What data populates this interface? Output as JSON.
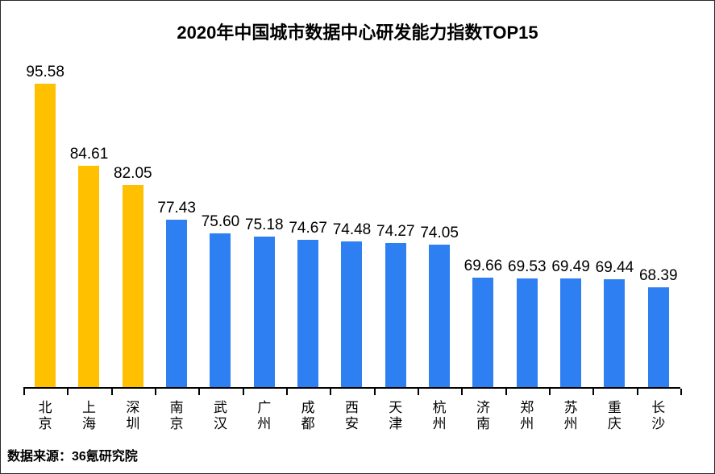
{
  "page": {
    "source_note": "数据来源：36氪研究院"
  },
  "colors": {
    "highlight_bar": "#FFC000",
    "normal_bar": "#2E7FF2",
    "axis": "#000000",
    "text": "#000000",
    "background": "#FFFFFF",
    "frame_border": "#2A2A2A"
  },
  "chart_data": {
    "type": "bar",
    "title": "2020年中国城市数据中心研发能力指数TOP15",
    "categories": [
      "北京",
      "上海",
      "深圳",
      "南京",
      "武汉",
      "广州",
      "成都",
      "西安",
      "天津",
      "杭州",
      "济南",
      "郑州",
      "苏州",
      "重庆",
      "长沙"
    ],
    "values": [
      95.58,
      84.61,
      82.05,
      77.43,
      75.6,
      75.18,
      74.67,
      74.48,
      74.27,
      74.05,
      69.66,
      69.53,
      69.49,
      69.44,
      68.39
    ],
    "value_labels": [
      "95.58",
      "84.61",
      "82.05",
      "77.43",
      "75.60",
      "75.18",
      "74.67",
      "74.48",
      "74.27",
      "74.05",
      "69.66",
      "69.53",
      "69.49",
      "69.44",
      "68.39"
    ],
    "bar_colors": [
      "#FFC000",
      "#FFC000",
      "#FFC000",
      "#2E7FF2",
      "#2E7FF2",
      "#2E7FF2",
      "#2E7FF2",
      "#2E7FF2",
      "#2E7FF2",
      "#2E7FF2",
      "#2E7FF2",
      "#2E7FF2",
      "#2E7FF2",
      "#2E7FF2",
      "#2E7FF2"
    ],
    "xlabel": "",
    "ylabel": "",
    "ylim": [
      55,
      100
    ],
    "grid": false,
    "legend": "none",
    "orientation": "vertical",
    "value_labels_shown": true
  }
}
